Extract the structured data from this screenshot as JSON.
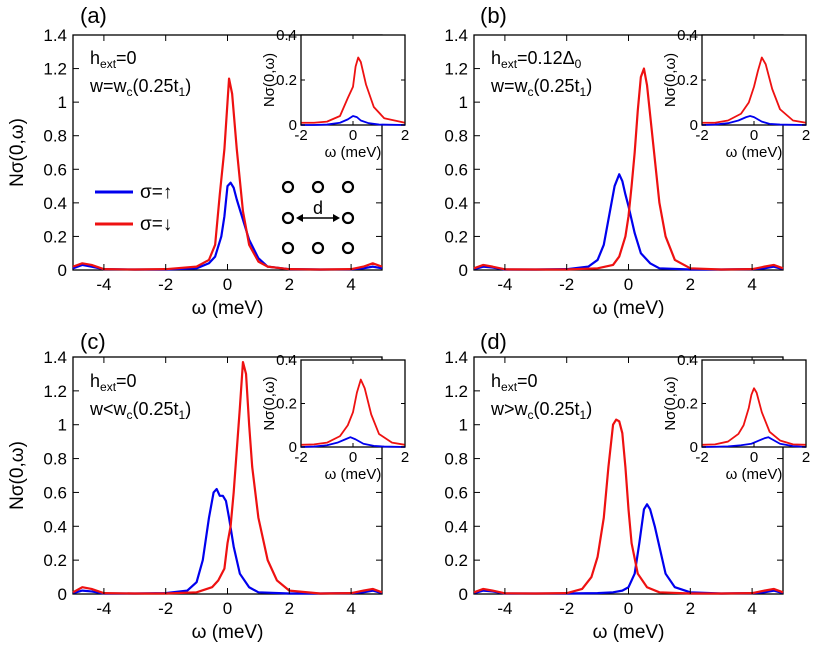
{
  "figure": {
    "lattice_label": "d",
    "legend": [
      {
        "label": "σ=↑",
        "color": "#0000ee"
      },
      {
        "label": "σ=↓",
        "color": "#ee1111"
      }
    ]
  },
  "chart_data": [
    {
      "type": "line",
      "panel": "(a)",
      "annotation": {
        "h": "h",
        "h_sub": "ext",
        "h_val": "=0",
        "w": "w=w",
        "w_sub": "c",
        "w_val": "(0.25t",
        "w_t_sub": "1",
        "w_end": ")"
      },
      "xlabel": "ω (meV)",
      "ylabel": "Nσ(0,ω)",
      "xlim": [
        -5,
        5
      ],
      "ylim": [
        0,
        1.4
      ],
      "xticks": [
        "-4",
        "-2",
        "0",
        "2",
        "4"
      ],
      "yticks": [
        "0",
        "0.2",
        "0.4",
        "0.6",
        "0.8",
        "1",
        "1.2",
        "1.4"
      ],
      "series": [
        {
          "name": "σ=↑",
          "color": "#0000ee",
          "x": [
            -5,
            -4.7,
            -4.4,
            -4,
            -3,
            -2,
            -1,
            -0.6,
            -0.4,
            -0.2,
            -0.1,
            0,
            0.1,
            0.2,
            0.3,
            0.5,
            0.7,
            1,
            1.3,
            2,
            3,
            4,
            4.4,
            4.7,
            5
          ],
          "y": [
            0.01,
            0.03,
            0.02,
            0.005,
            0.003,
            0.003,
            0.01,
            0.04,
            0.08,
            0.2,
            0.32,
            0.5,
            0.52,
            0.49,
            0.42,
            0.3,
            0.18,
            0.07,
            0.02,
            0.005,
            0.003,
            0.004,
            0.01,
            0.02,
            0.01
          ]
        },
        {
          "name": "σ=↓",
          "color": "#ee1111",
          "x": [
            -5,
            -4.7,
            -4.4,
            -4,
            -3,
            -2,
            -1,
            -0.6,
            -0.4,
            -0.25,
            -0.1,
            0,
            0.05,
            0.15,
            0.3,
            0.5,
            0.7,
            1,
            1.3,
            2,
            3,
            4,
            4.4,
            4.7,
            5
          ],
          "y": [
            0.02,
            0.04,
            0.03,
            0.005,
            0.003,
            0.005,
            0.02,
            0.06,
            0.15,
            0.45,
            0.72,
            1.0,
            1.14,
            1.05,
            0.72,
            0.35,
            0.15,
            0.05,
            0.02,
            0.005,
            0.003,
            0.005,
            0.02,
            0.04,
            0.02
          ]
        }
      ],
      "inset": {
        "xlabel": "ω (meV)",
        "ylabel": "Nσ(0,ω)",
        "xlim": [
          -2,
          2
        ],
        "ylim": [
          0,
          0.4
        ],
        "xticks": [
          "-2",
          "0",
          "2"
        ],
        "yticks": [
          "0",
          "0.2",
          "0.4"
        ],
        "series": [
          {
            "name": "σ=↑",
            "color": "#0000ee",
            "x": [
              -2,
              -1.5,
              -1,
              -0.5,
              -0.2,
              0,
              0.15,
              0.3,
              0.6,
              1,
              2
            ],
            "y": [
              0,
              0,
              0.002,
              0.01,
              0.025,
              0.04,
              0.035,
              0.02,
              0.008,
              0.002,
              0
            ]
          },
          {
            "name": "σ=↓",
            "color": "#ee1111",
            "x": [
              -2,
              -1.5,
              -1,
              -0.5,
              -0.2,
              0,
              0.1,
              0.2,
              0.3,
              0.5,
              0.8,
              1.2,
              2
            ],
            "y": [
              0.01,
              0.01,
              0.015,
              0.04,
              0.12,
              0.17,
              0.26,
              0.3,
              0.28,
              0.18,
              0.08,
              0.03,
              0.01
            ]
          }
        ]
      }
    },
    {
      "type": "line",
      "panel": "(b)",
      "annotation": {
        "h": "h",
        "h_sub": "ext",
        "h_val": "=0.12Δ",
        "h_val_sub": "0",
        "w": "w=w",
        "w_sub": "c",
        "w_val": "(0.25t",
        "w_t_sub": "1",
        "w_end": ")"
      },
      "xlabel": "ω (meV)",
      "ylabel": "",
      "xlim": [
        -5,
        5
      ],
      "ylim": [
        0,
        1.4
      ],
      "xticks": [
        "-4",
        "-2",
        "0",
        "2",
        "4"
      ],
      "yticks": [
        "0",
        "0.2",
        "0.4",
        "0.6",
        "0.8",
        "1",
        "1.2",
        "1.4"
      ],
      "series": [
        {
          "name": "σ=↑",
          "color": "#0000ee",
          "x": [
            -5,
            -4.7,
            -4.4,
            -4,
            -3,
            -2,
            -1.3,
            -1,
            -0.8,
            -0.6,
            -0.45,
            -0.3,
            -0.2,
            -0.1,
            0,
            0.2,
            0.4,
            0.7,
            1,
            2,
            3,
            4,
            4.4,
            4.7,
            5
          ],
          "y": [
            0.005,
            0.02,
            0.015,
            0.003,
            0.003,
            0.005,
            0.02,
            0.06,
            0.15,
            0.35,
            0.5,
            0.57,
            0.53,
            0.45,
            0.38,
            0.22,
            0.1,
            0.04,
            0.01,
            0.003,
            0.003,
            0.005,
            0.01,
            0.02,
            0.005
          ]
        },
        {
          "name": "σ=↓",
          "color": "#ee1111",
          "x": [
            -5,
            -4.7,
            -4.4,
            -4,
            -3,
            -2,
            -1,
            -0.5,
            -0.3,
            -0.1,
            0,
            0.1,
            0.2,
            0.3,
            0.4,
            0.5,
            0.6,
            0.8,
            1,
            1.2,
            1.5,
            2,
            3,
            4,
            4.4,
            4.7,
            5
          ],
          "y": [
            0.01,
            0.03,
            0.02,
            0.004,
            0.003,
            0.003,
            0.01,
            0.03,
            0.08,
            0.2,
            0.32,
            0.5,
            0.7,
            0.95,
            1.15,
            1.2,
            1.1,
            0.75,
            0.4,
            0.2,
            0.06,
            0.01,
            0.003,
            0.005,
            0.02,
            0.03,
            0.01
          ]
        }
      ],
      "inset": {
        "xlabel": "ω (meV)",
        "ylabel": "Nσ(0,ω)",
        "xlim": [
          -2,
          2
        ],
        "ylim": [
          0,
          0.4
        ],
        "xticks": [
          "-2",
          "0",
          "2"
        ],
        "yticks": [
          "0",
          "0.2",
          "0.4"
        ],
        "series": [
          {
            "name": "σ=↑",
            "color": "#0000ee",
            "x": [
              -2,
              -1.5,
              -1,
              -0.6,
              -0.3,
              -0.15,
              0,
              0.3,
              0.6,
              1,
              2
            ],
            "y": [
              0,
              0.002,
              0.008,
              0.02,
              0.035,
              0.04,
              0.035,
              0.015,
              0.005,
              0.002,
              0
            ]
          },
          {
            "name": "σ=↓",
            "color": "#ee1111",
            "x": [
              -2,
              -1.5,
              -1,
              -0.5,
              -0.2,
              0,
              0.15,
              0.3,
              0.45,
              0.7,
              1,
              1.5,
              2
            ],
            "y": [
              0.01,
              0.01,
              0.02,
              0.05,
              0.1,
              0.17,
              0.24,
              0.3,
              0.27,
              0.16,
              0.07,
              0.02,
              0.01
            ]
          }
        ]
      }
    },
    {
      "type": "line",
      "panel": "(c)",
      "annotation": {
        "h": "h",
        "h_sub": "ext",
        "h_val": "=0",
        "w": "w<w",
        "w_sub": "c",
        "w_val": "(0.25t",
        "w_t_sub": "1",
        "w_end": ")"
      },
      "xlabel": "ω (meV)",
      "ylabel": "Nσ(0,ω)",
      "xlim": [
        -5,
        5
      ],
      "ylim": [
        0,
        1.4
      ],
      "xticks": [
        "-4",
        "-2",
        "0",
        "2",
        "4"
      ],
      "yticks": [
        "0",
        "0.2",
        "0.4",
        "0.6",
        "0.8",
        "1",
        "1.2",
        "1.4"
      ],
      "series": [
        {
          "name": "σ=↑",
          "color": "#0000ee",
          "x": [
            -5,
            -4.7,
            -4.4,
            -4,
            -3,
            -2,
            -1.3,
            -1,
            -0.8,
            -0.6,
            -0.45,
            -0.35,
            -0.25,
            -0.15,
            -0.05,
            0.05,
            0.2,
            0.4,
            0.7,
            1,
            2,
            3,
            4,
            4.4,
            4.7,
            5
          ],
          "y": [
            0.005,
            0.02,
            0.015,
            0.003,
            0.003,
            0.005,
            0.02,
            0.07,
            0.2,
            0.45,
            0.6,
            0.62,
            0.58,
            0.58,
            0.55,
            0.45,
            0.28,
            0.12,
            0.04,
            0.01,
            0.003,
            0.003,
            0.005,
            0.01,
            0.02,
            0.005
          ]
        },
        {
          "name": "σ=↓",
          "color": "#ee1111",
          "x": [
            -5,
            -4.7,
            -4.4,
            -4,
            -3,
            -2,
            -1,
            -0.5,
            -0.3,
            -0.1,
            0,
            0.1,
            0.2,
            0.3,
            0.4,
            0.5,
            0.6,
            0.7,
            0.8,
            1,
            1.3,
            1.6,
            2,
            3,
            4,
            4.4,
            4.7,
            5
          ],
          "y": [
            0.01,
            0.04,
            0.03,
            0.005,
            0.003,
            0.003,
            0.01,
            0.04,
            0.08,
            0.15,
            0.3,
            0.4,
            0.6,
            0.85,
            1.1,
            1.37,
            1.3,
            1.0,
            0.75,
            0.45,
            0.2,
            0.08,
            0.02,
            0.003,
            0.005,
            0.02,
            0.03,
            0.01
          ]
        }
      ],
      "inset": {
        "xlabel": "ω (meV)",
        "ylabel": "Nσ(0,ω)",
        "xlim": [
          -2,
          2
        ],
        "ylim": [
          0,
          0.4
        ],
        "xticks": [
          "-2",
          "0",
          "2"
        ],
        "yticks": [
          "0",
          "0.2",
          "0.4"
        ],
        "series": [
          {
            "name": "σ=↑",
            "color": "#0000ee",
            "x": [
              -2,
              -1.5,
              -1,
              -0.6,
              -0.3,
              -0.1,
              0.1,
              0.4,
              0.8,
              1.2,
              2
            ],
            "y": [
              0,
              0.002,
              0.008,
              0.02,
              0.035,
              0.045,
              0.035,
              0.015,
              0.005,
              0.002,
              0
            ]
          },
          {
            "name": "σ=↓",
            "color": "#ee1111",
            "x": [
              -2,
              -1.5,
              -1,
              -0.5,
              -0.2,
              0,
              0.15,
              0.3,
              0.45,
              0.7,
              1,
              1.5,
              2
            ],
            "y": [
              0.01,
              0.012,
              0.02,
              0.05,
              0.1,
              0.16,
              0.25,
              0.31,
              0.27,
              0.15,
              0.06,
              0.02,
              0.01
            ]
          }
        ]
      }
    },
    {
      "type": "line",
      "panel": "(d)",
      "annotation": {
        "h": "h",
        "h_sub": "ext",
        "h_val": "=0",
        "w": "w>w",
        "w_sub": "c",
        "w_val": "(0.25t",
        "w_t_sub": "1",
        "w_end": ")"
      },
      "xlabel": "ω (meV)",
      "ylabel": "",
      "xlim": [
        -5,
        5
      ],
      "ylim": [
        0,
        1.4
      ],
      "xticks": [
        "-4",
        "-2",
        "0",
        "2",
        "4"
      ],
      "yticks": [
        "0",
        "0.2",
        "0.4",
        "0.6",
        "0.8",
        "1",
        "1.2",
        "1.4"
      ],
      "series": [
        {
          "name": "σ=↑",
          "color": "#0000ee",
          "x": [
            -5,
            -4.7,
            -4.4,
            -4,
            -3,
            -2,
            -1,
            -0.5,
            -0.2,
            0,
            0.2,
            0.35,
            0.5,
            0.6,
            0.7,
            0.85,
            1,
            1.2,
            1.5,
            2,
            3,
            4,
            4.4,
            4.7,
            5
          ],
          "y": [
            0.005,
            0.02,
            0.015,
            0.003,
            0.003,
            0.003,
            0.005,
            0.01,
            0.02,
            0.04,
            0.12,
            0.3,
            0.5,
            0.53,
            0.5,
            0.4,
            0.28,
            0.12,
            0.04,
            0.01,
            0.003,
            0.005,
            0.01,
            0.02,
            0.005
          ]
        },
        {
          "name": "σ=↓",
          "color": "#ee1111",
          "x": [
            -5,
            -4.7,
            -4.4,
            -4,
            -3,
            -2,
            -1.5,
            -1.2,
            -1,
            -0.8,
            -0.65,
            -0.5,
            -0.4,
            -0.3,
            -0.2,
            -0.1,
            0,
            0.1,
            0.3,
            0.6,
            1,
            2,
            3,
            4,
            4.4,
            4.7,
            5
          ],
          "y": [
            0.01,
            0.03,
            0.02,
            0.004,
            0.003,
            0.005,
            0.03,
            0.1,
            0.22,
            0.45,
            0.75,
            1.0,
            1.03,
            1.02,
            0.95,
            0.75,
            0.5,
            0.3,
            0.12,
            0.04,
            0.01,
            0.003,
            0.003,
            0.005,
            0.02,
            0.03,
            0.01
          ]
        }
      ],
      "inset": {
        "xlabel": "ω (meV)",
        "ylabel": "Nσ(0,ω)",
        "xlim": [
          -2,
          2
        ],
        "ylim": [
          0,
          0.4
        ],
        "xticks": [
          "-2",
          "0",
          "2"
        ],
        "yticks": [
          "0",
          "0.2",
          "0.4"
        ],
        "series": [
          {
            "name": "σ=↑",
            "color": "#0000ee",
            "x": [
              -2,
              -1.5,
              -1,
              -0.5,
              -0.1,
              0.2,
              0.4,
              0.55,
              0.7,
              1,
              1.5,
              2
            ],
            "y": [
              0,
              0.001,
              0.003,
              0.008,
              0.015,
              0.03,
              0.04,
              0.045,
              0.035,
              0.015,
              0.004,
              0
            ]
          },
          {
            "name": "σ=↓",
            "color": "#ee1111",
            "x": [
              -2,
              -1.5,
              -1,
              -0.6,
              -0.4,
              -0.2,
              -0.1,
              0,
              0.1,
              0.3,
              0.6,
              1,
              1.5,
              2
            ],
            "y": [
              0.01,
              0.012,
              0.025,
              0.06,
              0.1,
              0.18,
              0.24,
              0.27,
              0.25,
              0.16,
              0.07,
              0.03,
              0.012,
              0.01
            ]
          }
        ]
      }
    }
  ]
}
